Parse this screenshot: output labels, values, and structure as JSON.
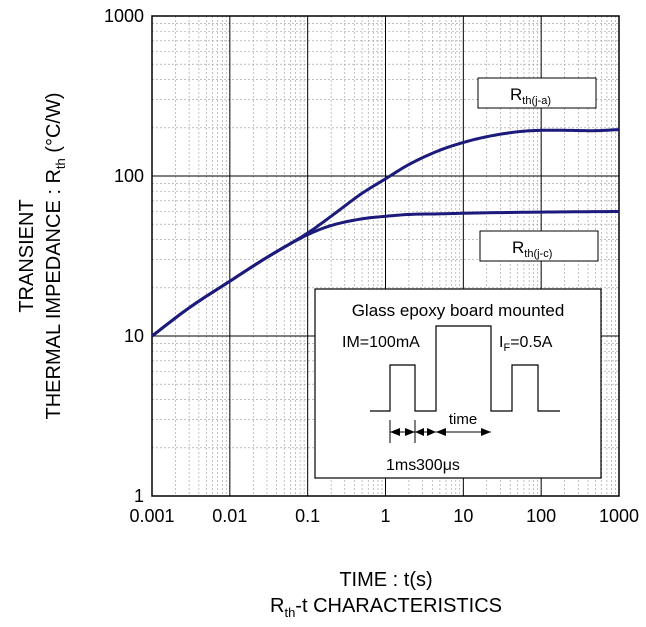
{
  "chart_data": {
    "type": "line",
    "x_scale": "log",
    "y_scale": "log",
    "xlim": [
      0.001,
      1000
    ],
    "ylim": [
      1,
      1000
    ],
    "grid": true,
    "x_ticks": [
      "0.001",
      "0.01",
      "0.1",
      "1",
      "10",
      "100",
      "1000"
    ],
    "y_ticks": [
      "1",
      "10",
      "100",
      "1000"
    ],
    "ylabel_line1": "TRANSIENT",
    "ylabel_line2": "THERMAL IMPEDANCE : R",
    "ylabel_sub": "th",
    "ylabel_unit": "(°C/W)",
    "xlabel": "TIME : t(s)",
    "caption_pre": "R",
    "caption_sub": "th",
    "caption_post": "-t CHARACTERISTICS",
    "series": [
      {
        "name": "th(j-a)",
        "label_main": "R",
        "label_sub": "th(j-a)",
        "color": "#1c1a7a",
        "x": [
          0.001,
          0.003,
          0.01,
          0.03,
          0.1,
          0.2,
          0.3,
          0.5,
          1,
          2,
          5,
          10,
          20,
          50,
          100,
          200,
          500,
          1000
        ],
        "y": [
          10,
          15,
          22,
          31,
          44,
          56,
          65,
          78,
          96,
          118,
          145,
          162,
          176,
          189,
          193,
          193,
          192,
          195
        ]
      },
      {
        "name": "th(j-c)",
        "label_main": "R",
        "label_sub": "th(j-c)",
        "color": "#1c1a7a",
        "x": [
          0.001,
          0.003,
          0.01,
          0.03,
          0.1,
          0.2,
          0.5,
          1,
          2,
          5,
          10,
          100,
          1000
        ],
        "y": [
          10,
          15,
          22,
          31,
          43,
          49,
          54,
          56,
          57.5,
          58,
          58.5,
          59.5,
          60
        ]
      }
    ],
    "inset": {
      "title": "Glass epoxy board mounted",
      "im_label": "IM=100mA",
      "if_main": "I",
      "if_sub": "F",
      "if_post": "=0.5A",
      "time_label": "time",
      "d1_label": "1ms",
      "d2_label": "300μs"
    }
  }
}
